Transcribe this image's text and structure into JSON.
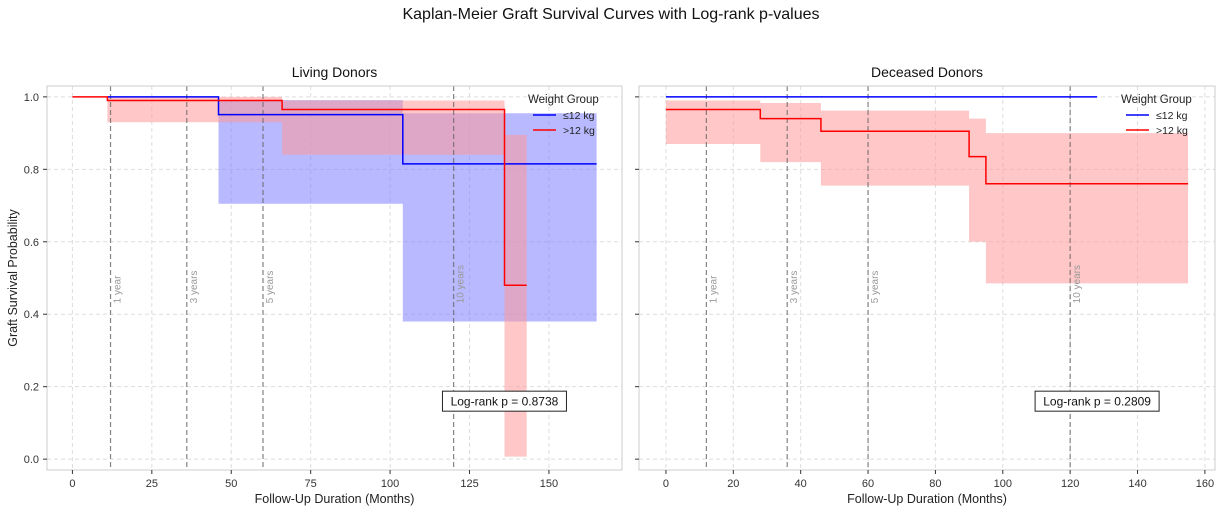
{
  "figure_title": "Kaplan-Meier Graft Survival Curves with Log-rank p-values",
  "colors": {
    "group1": "#0000ff",
    "group2": "#ff0000",
    "band1": "#8080ff",
    "band2": "#ff9999",
    "milestone": "#666666",
    "grid": "#dddddd",
    "spine": "#cccccc"
  },
  "chart_data": [
    {
      "type": "line",
      "subtype": "kaplan-meier step with confidence bands",
      "title": "Living Donors",
      "xlabel": "Follow-Up Duration (Months)",
      "ylabel": "Graft Survival Probability",
      "xlim": [
        -8,
        173
      ],
      "ylim": [
        -0.03,
        1.03
      ],
      "xticks": [
        0,
        25,
        50,
        75,
        100,
        125,
        150
      ],
      "xtick_labels": [
        "0",
        "25",
        "50",
        "75",
        "100",
        "125",
        "150"
      ],
      "yticks": [
        0.0,
        0.2,
        0.4,
        0.6,
        0.8,
        1.0
      ],
      "ytick_labels": [
        "0.0",
        "0.2",
        "0.4",
        "0.6",
        "0.8",
        "1.0"
      ],
      "grid": true,
      "legend": {
        "title": "Weight Group",
        "position": "top-right"
      },
      "milestones": [
        {
          "x": 12,
          "label": "1 year"
        },
        {
          "x": 36,
          "label": "3 years"
        },
        {
          "x": 60,
          "label": "5 years"
        },
        {
          "x": 120,
          "label": "10 years"
        }
      ],
      "annotation": "Log-rank p = 0.8738",
      "series": [
        {
          "name": "≤12 kg",
          "color": "#0000ff",
          "band_color": "#8080ff",
          "steps": [
            [
              11,
              1.0
            ],
            [
              46,
              0.951
            ],
            [
              104,
              0.815
            ],
            [
              165,
              0.815
            ]
          ],
          "ci": [
            [
              11,
              1.0,
              1.0
            ],
            [
              46,
              0.705,
              0.991
            ],
            [
              104,
              0.38,
              0.955
            ],
            [
              165,
              0.38,
              0.955
            ]
          ]
        },
        {
          "name": ">12 kg",
          "color": "#ff0000",
          "band_color": "#ff9999",
          "steps": [
            [
              0,
              1.0
            ],
            [
              11,
              0.99
            ],
            [
              66,
              0.965
            ],
            [
              136,
              0.48
            ],
            [
              143,
              0.48
            ]
          ],
          "ci": [
            [
              11,
              0.93,
              1.0
            ],
            [
              66,
              0.84,
              0.99
            ],
            [
              136,
              0.007,
              0.895
            ],
            [
              143,
              0.007,
              0.895
            ]
          ]
        }
      ]
    },
    {
      "type": "line",
      "subtype": "kaplan-meier step with confidence bands",
      "title": "Deceased Donors",
      "xlabel": "Follow-Up Duration (Months)",
      "ylabel": "",
      "xlim": [
        -8,
        163
      ],
      "ylim": [
        -0.03,
        1.03
      ],
      "xticks": [
        0,
        20,
        40,
        60,
        80,
        100,
        120,
        140,
        160
      ],
      "xtick_labels": [
        "0",
        "20",
        "40",
        "60",
        "80",
        "100",
        "120",
        "140",
        "160"
      ],
      "yticks": [
        0.0,
        0.2,
        0.4,
        0.6,
        0.8,
        1.0
      ],
      "ytick_labels": [],
      "grid": true,
      "legend": {
        "title": "Weight Group",
        "position": "top-right"
      },
      "milestones": [
        {
          "x": 12,
          "label": "1 year"
        },
        {
          "x": 36,
          "label": "3 years"
        },
        {
          "x": 60,
          "label": "5 years"
        },
        {
          "x": 120,
          "label": "10 years"
        }
      ],
      "annotation": "Log-rank p = 0.2809",
      "series": [
        {
          "name": "≤12 kg",
          "color": "#0000ff",
          "band_color": "#8080ff",
          "steps": [
            [
              0,
              1.0
            ],
            [
              128,
              1.0
            ]
          ],
          "ci": []
        },
        {
          "name": ">12 kg",
          "color": "#ff0000",
          "band_color": "#ff9999",
          "steps": [
            [
              0,
              0.965
            ],
            [
              28,
              0.94
            ],
            [
              46,
              0.905
            ],
            [
              90,
              0.835
            ],
            [
              95,
              0.76
            ],
            [
              155,
              0.76
            ]
          ],
          "ci": [
            [
              0,
              0.87,
              0.99
            ],
            [
              28,
              0.82,
              0.983
            ],
            [
              46,
              0.755,
              0.962
            ],
            [
              90,
              0.6,
              0.94
            ],
            [
              95,
              0.485,
              0.9
            ],
            [
              155,
              0.485,
              0.9
            ]
          ]
        }
      ]
    }
  ]
}
